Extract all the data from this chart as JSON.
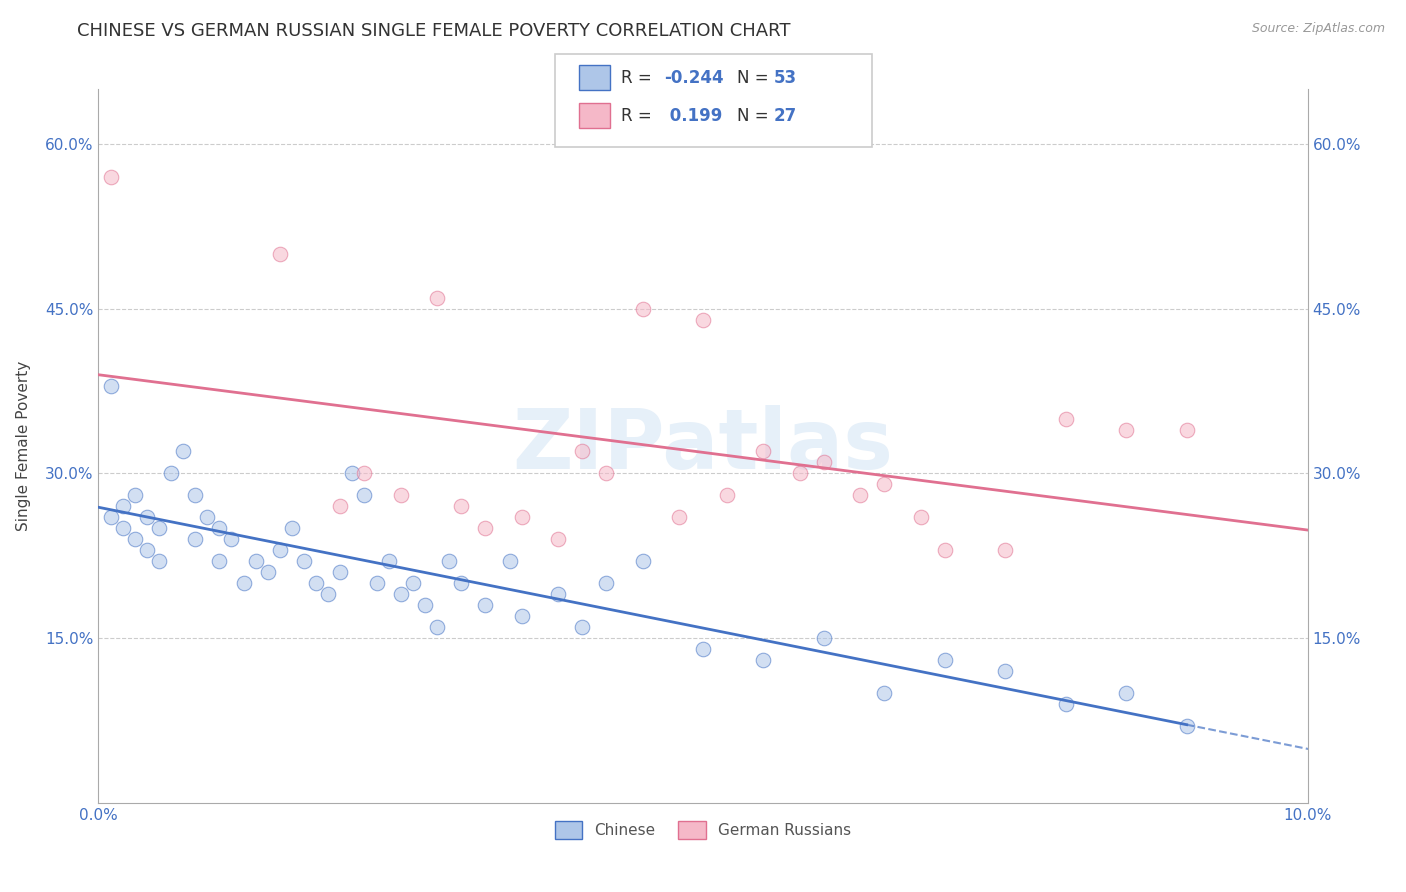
{
  "title": "CHINESE VS GERMAN RUSSIAN SINGLE FEMALE POVERTY CORRELATION CHART",
  "source": "Source: ZipAtlas.com",
  "ylabel": "Single Female Poverty",
  "xlim": [
    0.0,
    0.1
  ],
  "ylim": [
    0.0,
    0.65
  ],
  "yticks": [
    0.0,
    0.15,
    0.3,
    0.45,
    0.6
  ],
  "ytick_labels": [
    "",
    "15.0%",
    "30.0%",
    "45.0%",
    "60.0%"
  ],
  "chinese_color": "#aec6e8",
  "german_russian_color": "#f5b8c8",
  "chinese_line_color": "#4472c4",
  "german_russian_line_color": "#e07090",
  "watermark": "ZIPatlas",
  "chinese_R": -0.244,
  "chinese_N": 53,
  "german_russian_R": 0.199,
  "german_russian_N": 27,
  "title_fontsize": 13,
  "label_fontsize": 11,
  "tick_fontsize": 11,
  "marker_size": 110,
  "marker_alpha": 0.55,
  "legend_text_color": "#333333",
  "legend_value_color": "#4472c4"
}
